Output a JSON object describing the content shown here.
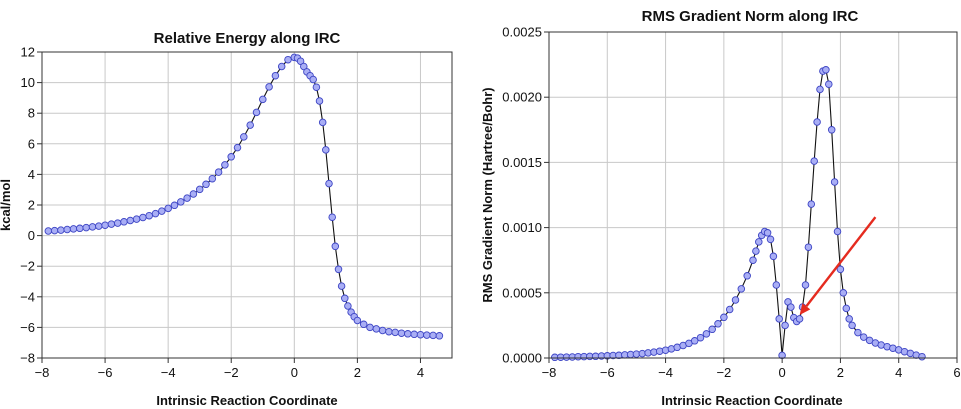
{
  "chart_data": [
    {
      "type": "scatter",
      "title": "Relative Energy along IRC",
      "xlabel": "Intrinsic Reaction Coordinate",
      "ylabel": "kcal/mol",
      "xlim": [
        -8,
        5
      ],
      "ylim": [
        -8,
        12
      ],
      "x_ticks": [
        -8,
        -6,
        -4,
        -2,
        0,
        2,
        4
      ],
      "x_tick_labels": [
        "−8",
        "−6",
        "−4",
        "−2",
        "0",
        "2",
        "4"
      ],
      "y_ticks": [
        -8,
        -6,
        -4,
        -2,
        0,
        2,
        4,
        6,
        8,
        10,
        12
      ],
      "y_tick_labels": [
        "−8",
        "−6",
        "−4",
        "−2",
        "0",
        "2",
        "4",
        "6",
        "8",
        "10",
        "12"
      ],
      "grid": true,
      "marker": "circle",
      "marker_color": "#a9aef5",
      "marker_edge_color": "#3c44c4",
      "line_color": "#111111",
      "series": [
        {
          "name": "Relative Energy",
          "x": [
            -7.8,
            -7.6,
            -7.4,
            -7.2,
            -7.0,
            -6.8,
            -6.6,
            -6.4,
            -6.2,
            -6.0,
            -5.8,
            -5.6,
            -5.4,
            -5.2,
            -5.0,
            -4.8,
            -4.6,
            -4.4,
            -4.2,
            -4.0,
            -3.8,
            -3.6,
            -3.4,
            -3.2,
            -3.0,
            -2.8,
            -2.6,
            -2.4,
            -2.2,
            -2.0,
            -1.8,
            -1.6,
            -1.4,
            -1.2,
            -1.0,
            -0.8,
            -0.6,
            -0.4,
            -0.2,
            0.0,
            0.1,
            0.2,
            0.3,
            0.4,
            0.5,
            0.6,
            0.7,
            0.8,
            0.9,
            1.0,
            1.1,
            1.2,
            1.3,
            1.4,
            1.5,
            1.6,
            1.7,
            1.8,
            1.9,
            2.0,
            2.2,
            2.4,
            2.6,
            2.8,
            3.0,
            3.2,
            3.4,
            3.6,
            3.8,
            4.0,
            4.2,
            4.4,
            4.6
          ],
          "y": [
            0.3,
            0.33,
            0.36,
            0.4,
            0.44,
            0.48,
            0.52,
            0.57,
            0.62,
            0.68,
            0.75,
            0.82,
            0.9,
            0.99,
            1.08,
            1.18,
            1.3,
            1.44,
            1.6,
            1.78,
            1.98,
            2.2,
            2.45,
            2.72,
            3.02,
            3.35,
            3.72,
            4.15,
            4.62,
            5.15,
            5.75,
            6.45,
            7.22,
            8.05,
            8.9,
            9.72,
            10.45,
            11.05,
            11.5,
            11.65,
            11.6,
            11.4,
            11.05,
            10.7,
            10.45,
            10.2,
            9.7,
            8.8,
            7.4,
            5.6,
            3.4,
            1.2,
            -0.7,
            -2.2,
            -3.3,
            -4.1,
            -4.6,
            -5.0,
            -5.3,
            -5.55,
            -5.8,
            -6.0,
            -6.1,
            -6.2,
            -6.28,
            -6.33,
            -6.38,
            -6.42,
            -6.45,
            -6.48,
            -6.5,
            -6.52,
            -6.55
          ]
        }
      ]
    },
    {
      "type": "scatter",
      "title": "RMS Gradient Norm along IRC",
      "xlabel": "Intrinsic Reaction Coordinate",
      "ylabel": "RMS Gradient Norm (Hartree/Bohr)",
      "xlim": [
        -8,
        6
      ],
      "ylim": [
        0,
        0.0025
      ],
      "x_ticks": [
        -8,
        -6,
        -4,
        -2,
        0,
        2,
        4,
        6
      ],
      "x_tick_labels": [
        "−8",
        "−6",
        "−4",
        "−2",
        "0",
        "2",
        "4",
        "6"
      ],
      "y_ticks": [
        0,
        0.0005,
        0.001,
        0.0015,
        0.002,
        0.0025
      ],
      "y_tick_labels": [
        "0.0000",
        "0.0005",
        "0.0010",
        "0.0015",
        "0.0020",
        "0.0025"
      ],
      "grid": true,
      "marker": "circle",
      "marker_color": "#a9aef5",
      "marker_edge_color": "#3c44c4",
      "line_color": "#111111",
      "annotations": [
        {
          "type": "arrow",
          "color": "#e52b1f",
          "from": [
            3.2,
            0.00108
          ],
          "to": [
            0.6,
            0.00033
          ]
        }
      ],
      "series": [
        {
          "name": "RMS Gradient Norm",
          "x": [
            -7.8,
            -7.6,
            -7.4,
            -7.2,
            -7.0,
            -6.8,
            -6.6,
            -6.4,
            -6.2,
            -6.0,
            -5.8,
            -5.6,
            -5.4,
            -5.2,
            -5.0,
            -4.8,
            -4.6,
            -4.4,
            -4.2,
            -4.0,
            -3.8,
            -3.6,
            -3.4,
            -3.2,
            -3.0,
            -2.8,
            -2.6,
            -2.4,
            -2.2,
            -2.0,
            -1.8,
            -1.6,
            -1.4,
            -1.2,
            -1.0,
            -0.9,
            -0.8,
            -0.7,
            -0.6,
            -0.5,
            -0.4,
            -0.3,
            -0.2,
            -0.1,
            0.0,
            0.1,
            0.2,
            0.3,
            0.4,
            0.5,
            0.6,
            0.7,
            0.8,
            0.9,
            1.0,
            1.1,
            1.2,
            1.3,
            1.4,
            1.5,
            1.6,
            1.7,
            1.8,
            1.9,
            2.0,
            2.1,
            2.2,
            2.3,
            2.4,
            2.6,
            2.8,
            3.0,
            3.2,
            3.4,
            3.6,
            3.8,
            4.0,
            4.2,
            4.4,
            4.6,
            4.8
          ],
          "y": [
            5e-06,
            6e-06,
            7e-06,
            8e-06,
            1e-05,
            1.1e-05,
            1.2e-05,
            1.3e-05,
            1.5e-05,
            1.7e-05,
            1.9e-05,
            2.1e-05,
            2.4e-05,
            2.7e-05,
            3e-05,
            3.4e-05,
            3.9e-05,
            4.5e-05,
            5.2e-05,
            6e-05,
            7e-05,
            8.2e-05,
            9.6e-05,
            0.000112,
            0.000132,
            0.000156,
            0.000185,
            0.00022,
            0.000262,
            0.000312,
            0.000372,
            0.000445,
            0.00053,
            0.00063,
            0.00075,
            0.00082,
            0.00089,
            0.00094,
            0.00097,
            0.00096,
            0.00091,
            0.00078,
            0.00056,
            0.0003,
            2e-05,
            0.00025,
            0.00043,
            0.00039,
            0.00031,
            0.00028,
            0.0003,
            0.00039,
            0.00056,
            0.00085,
            0.00118,
            0.00151,
            0.00181,
            0.00206,
            0.0022,
            0.00221,
            0.0021,
            0.00175,
            0.00135,
            0.00097,
            0.00068,
            0.0005,
            0.00038,
            0.0003,
            0.00025,
            0.000195,
            0.00016,
            0.000135,
            0.000115,
            0.0001,
            8.7e-05,
            7.5e-05,
            6.2e-05,
            4.8e-05,
            3.5e-05,
            2.2e-05,
            1e-05
          ]
        }
      ]
    }
  ]
}
